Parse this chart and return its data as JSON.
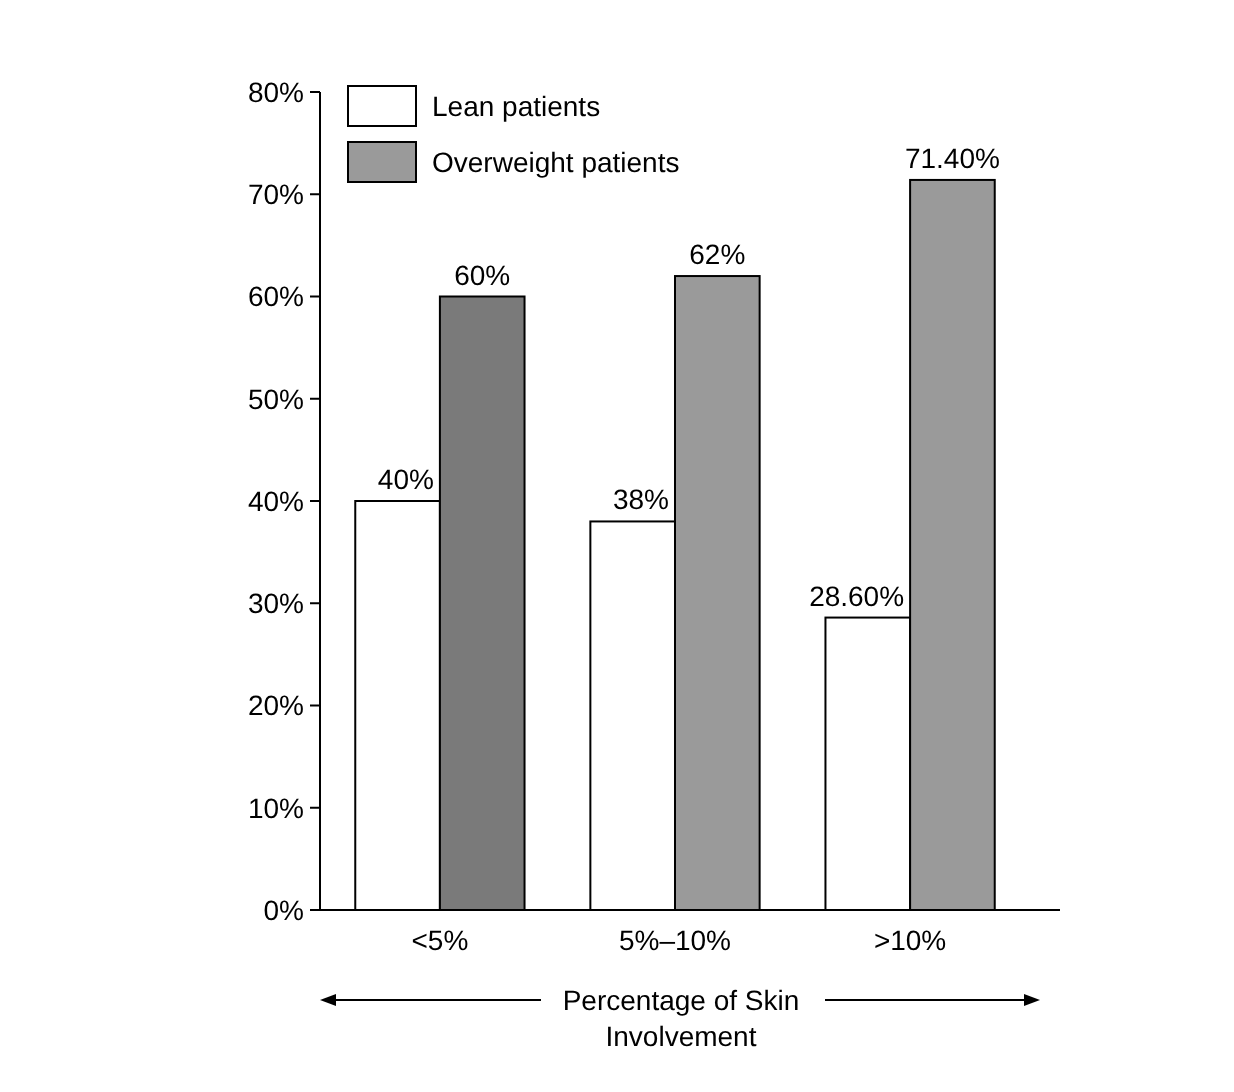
{
  "chart_data": {
    "type": "bar",
    "xlabel": "Percentage of Skin Involvement",
    "categories": [
      "<5%",
      "5%–10%",
      ">10%"
    ],
    "series": [
      {
        "name": "Lean patients",
        "color": "#ffffff",
        "values": [
          40,
          38,
          28.6
        ],
        "value_labels": [
          "40%",
          "38%",
          "28.60%"
        ]
      },
      {
        "name": "Overweight patients",
        "color": "#9a9a9a",
        "colors": [
          "#7a7a7a",
          "#9a9a9a",
          "#9a9a9a"
        ],
        "values": [
          60,
          62,
          71.4
        ],
        "value_labels": [
          "60%",
          "62%",
          "71.40%"
        ]
      }
    ],
    "ylim": [
      0,
      80
    ],
    "yticks": [
      {
        "value": 0,
        "label": "0%"
      },
      {
        "value": 10,
        "label": "10%"
      },
      {
        "value": 20,
        "label": "20%"
      },
      {
        "value": 30,
        "label": "30%"
      },
      {
        "value": 40,
        "label": "40%"
      },
      {
        "value": 50,
        "label": "50%"
      },
      {
        "value": 60,
        "label": "60%"
      },
      {
        "value": 70,
        "label": "70%"
      },
      {
        "value": 80,
        "label": "80%"
      }
    ],
    "legend": "top left",
    "grid": false
  }
}
